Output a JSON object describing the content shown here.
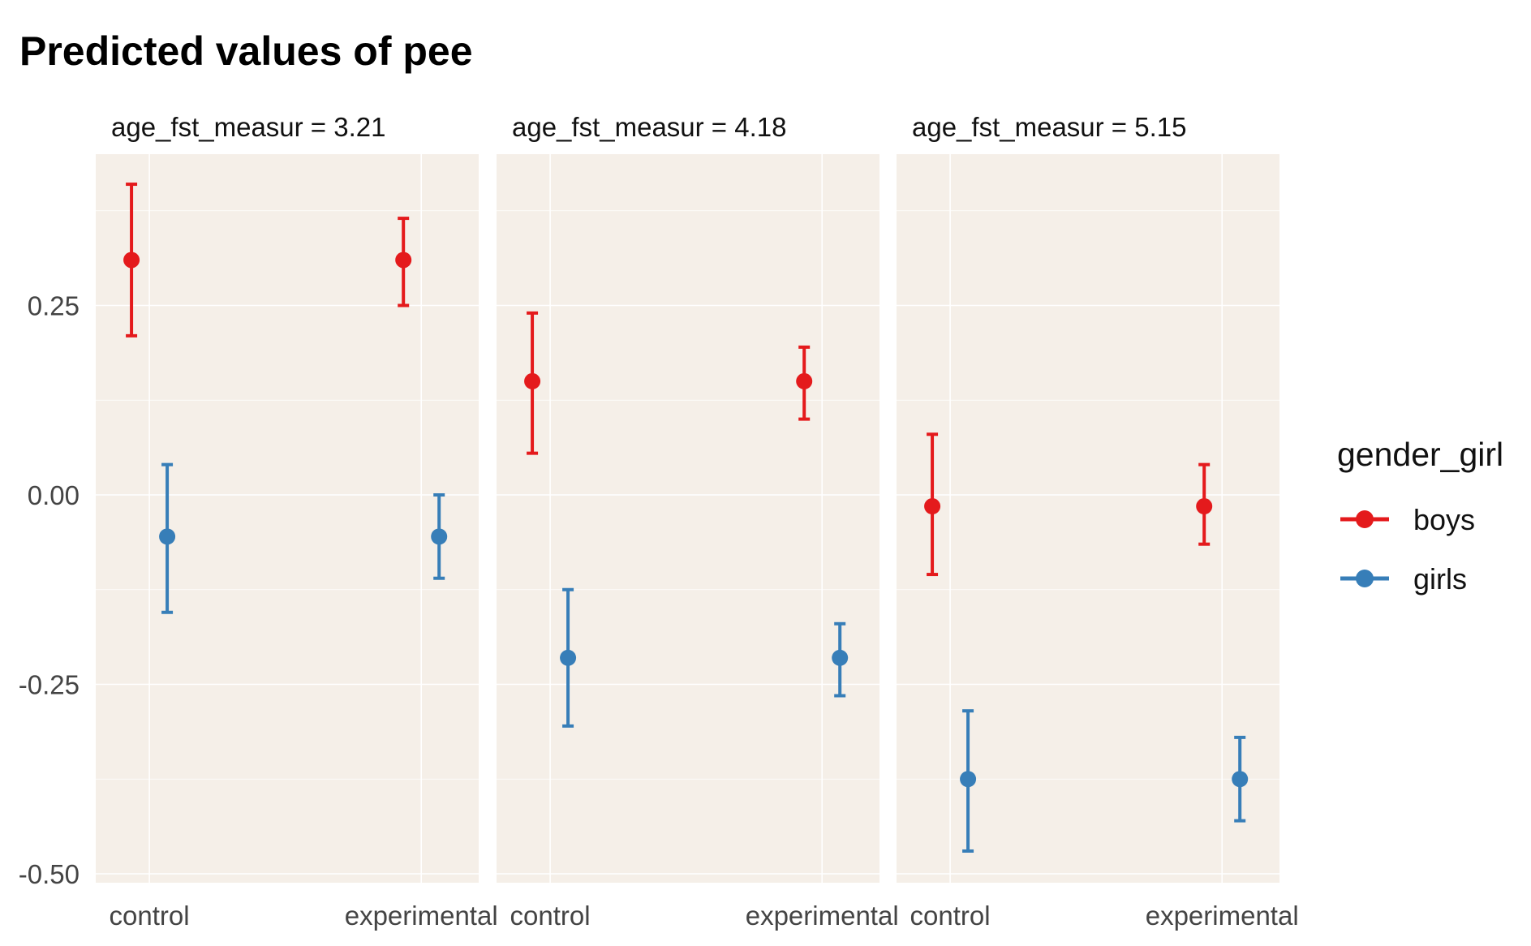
{
  "chart_data": {
    "type": "scatter",
    "title": "Predicted values of pee",
    "xlabel": "",
    "ylabel": "",
    "categories": [
      "control",
      "experimental"
    ],
    "y_ticks": [
      "0.25",
      "0.00",
      "-0.25",
      "-0.50"
    ],
    "ylim": [
      -0.52,
      0.45
    ],
    "grid": true,
    "panel_background": "#f5efe8",
    "legend": {
      "title": "gender_girl",
      "position": "right"
    },
    "facets": [
      {
        "label": "age_fst_measur = 3.21",
        "series": [
          {
            "name": "boys",
            "color": "#e41a1c",
            "points": [
              {
                "x": "control",
                "y": 0.31,
                "lo": 0.21,
                "hi": 0.41
              },
              {
                "x": "experimental",
                "y": 0.31,
                "lo": 0.25,
                "hi": 0.365
              }
            ]
          },
          {
            "name": "girls",
            "color": "#377eb8",
            "points": [
              {
                "x": "control",
                "y": -0.055,
                "lo": -0.155,
                "hi": 0.04
              },
              {
                "x": "experimental",
                "y": -0.055,
                "lo": -0.11,
                "hi": 0.0
              }
            ]
          }
        ]
      },
      {
        "label": "age_fst_measur = 4.18",
        "series": [
          {
            "name": "boys",
            "color": "#e41a1c",
            "points": [
              {
                "x": "control",
                "y": 0.15,
                "lo": 0.055,
                "hi": 0.24
              },
              {
                "x": "experimental",
                "y": 0.15,
                "lo": 0.1,
                "hi": 0.195
              }
            ]
          },
          {
            "name": "girls",
            "color": "#377eb8",
            "points": [
              {
                "x": "control",
                "y": -0.215,
                "lo": -0.305,
                "hi": -0.125
              },
              {
                "x": "experimental",
                "y": -0.215,
                "lo": -0.265,
                "hi": -0.17
              }
            ]
          }
        ]
      },
      {
        "label": "age_fst_measur = 5.15",
        "series": [
          {
            "name": "boys",
            "color": "#e41a1c",
            "points": [
              {
                "x": "control",
                "y": -0.015,
                "lo": -0.105,
                "hi": 0.08
              },
              {
                "x": "experimental",
                "y": -0.015,
                "lo": -0.065,
                "hi": 0.04
              }
            ]
          },
          {
            "name": "girls",
            "color": "#377eb8",
            "points": [
              {
                "x": "control",
                "y": -0.375,
                "lo": -0.47,
                "hi": -0.285
              },
              {
                "x": "experimental",
                "y": -0.375,
                "lo": -0.43,
                "hi": -0.32
              }
            ]
          }
        ]
      }
    ]
  }
}
